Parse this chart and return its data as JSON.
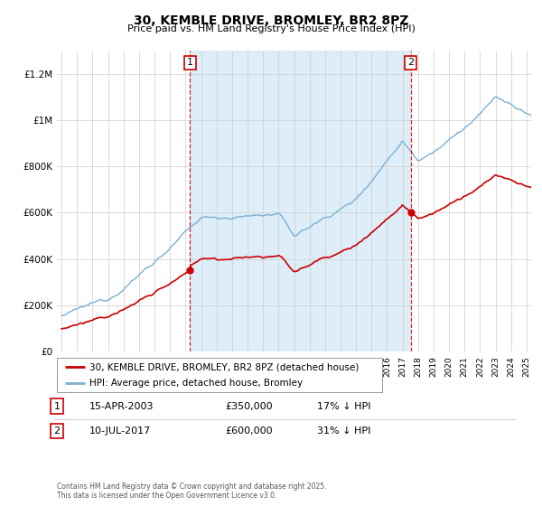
{
  "title": "30, KEMBLE DRIVE, BROMLEY, BR2 8PZ",
  "subtitle": "Price paid vs. HM Land Registry's House Price Index (HPI)",
  "ylim": [
    0,
    1300000
  ],
  "yticks": [
    0,
    200000,
    400000,
    600000,
    800000,
    1000000,
    1200000
  ],
  "ytick_labels": [
    "£0",
    "£200K",
    "£400K",
    "£600K",
    "£800K",
    "£1M",
    "£1.2M"
  ],
  "hpi_color": "#7ab0d4",
  "hpi_fill_color": "#ddeef8",
  "price_color": "#cc0000",
  "plot_bg": "#ffffff",
  "grid_color": "#cccccc",
  "marker1_x": 2003.29,
  "marker1_y": 350000,
  "marker2_x": 2017.53,
  "marker2_y": 600000,
  "marker1_date": "15-APR-2003",
  "marker1_price": "£350,000",
  "marker1_hpi": "17% ↓ HPI",
  "marker2_date": "10-JUL-2017",
  "marker2_price": "£600,000",
  "marker2_hpi": "31% ↓ HPI",
  "legend_line1": "30, KEMBLE DRIVE, BROMLEY, BR2 8PZ (detached house)",
  "legend_line2": "HPI: Average price, detached house, Bromley",
  "footer": "Contains HM Land Registry data © Crown copyright and database right 2025.\nThis data is licensed under the Open Government Licence v3.0.",
  "xlim_left": 1995.0,
  "xlim_right": 2025.3
}
